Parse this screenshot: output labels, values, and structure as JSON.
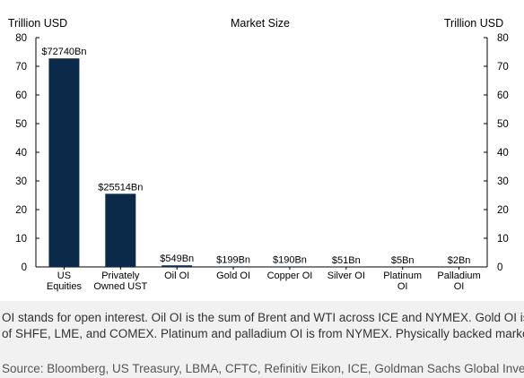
{
  "chart_data": {
    "type": "bar",
    "title": "Market Size",
    "ylabel_left": "Trillion USD",
    "ylabel_right": "Trillion USD",
    "ylim": [
      0,
      80
    ],
    "yticks": [
      "0",
      "10",
      "20",
      "30",
      "40",
      "50",
      "60",
      "70",
      "80"
    ],
    "categories": [
      [
        "US",
        "Equities"
      ],
      [
        "Privately",
        "Owned UST"
      ],
      [
        "Oil OI"
      ],
      [
        "Gold OI"
      ],
      [
        "Copper OI"
      ],
      [
        "Silver OI"
      ],
      [
        "Platinum",
        "OI"
      ],
      [
        "Palladium",
        "OI"
      ]
    ],
    "values": [
      72.74,
      25.514,
      0.549,
      0.199,
      0.19,
      0.051,
      0.005,
      0.002
    ],
    "data_labels": [
      "$72740Bn",
      "$25514Bn",
      "$549Bn",
      "$199Bn",
      "$190Bn",
      "$51Bn",
      "$5Bn",
      "$2Bn"
    ],
    "bar_color": "#0b2a4a",
    "grid": false,
    "legend": "none"
  },
  "notes": {
    "footnote": "OI stands for open interest. Oil OI is the sum of Brent and WTI across ICE and NYMEX. Gold OI is the sum of SHFE, LME, and COMEX. Platinum and palladium OI is from NYMEX. Physically backed markets.",
    "source": "Source: Bloomberg, US Treasury, LBMA, CFTC, Refinitiv Eikon, ICE, Goldman Sachs Global Investment Research"
  }
}
